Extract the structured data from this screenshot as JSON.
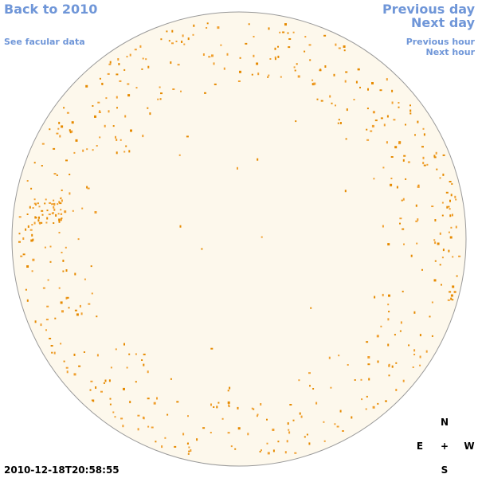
{
  "links": {
    "back": "Back to 2010",
    "facular": "See facular data",
    "previous_day": "Previous day",
    "next_day": "Next day",
    "previous_hour": "Previous hour",
    "next_hour": "Next hour"
  },
  "timestamp": "2010-12-18T20:58:55",
  "compass": {
    "north": "N",
    "east": "E",
    "center": "+",
    "west": "W",
    "south": "S"
  }
}
